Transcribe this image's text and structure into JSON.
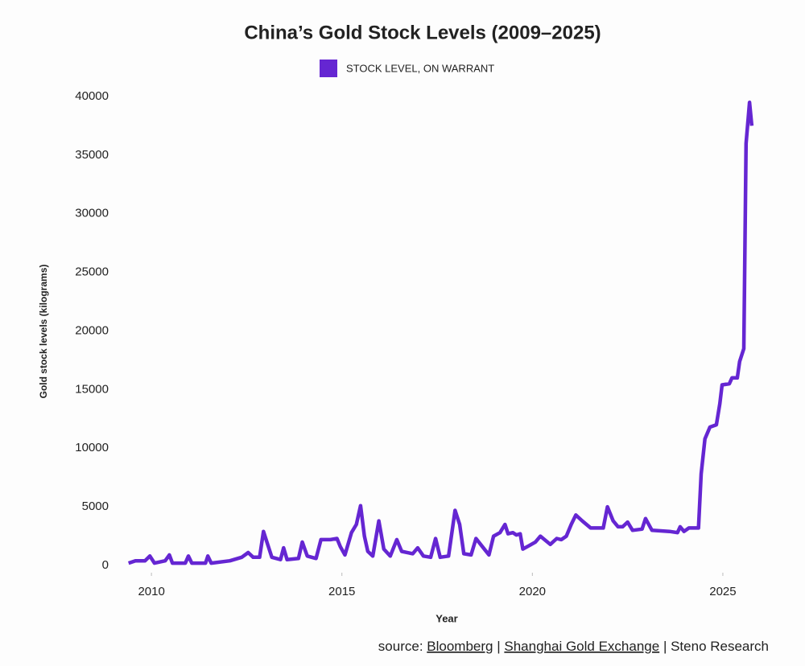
{
  "chart_data": {
    "type": "line",
    "title": "China’s Gold Stock Levels (2009–2025)",
    "xlabel": "Year",
    "ylabel": "Gold stock levels (kilograms)",
    "source": [
      "source:",
      "Bloomberg",
      "|",
      "Shanghai Gold Exchange",
      "|",
      "Steno Research"
    ],
    "legend": "top",
    "xlim": [
      2009.3,
      2026.1
    ],
    "xticks": [
      2010,
      2015,
      2020,
      2025
    ],
    "ylim": [
      0,
      40000
    ],
    "yticks": [
      0,
      5000,
      10000,
      15000,
      20000,
      25000,
      30000,
      35000,
      40000
    ],
    "grid": false,
    "x": [
      2009.4,
      2009.58,
      2009.83,
      2009.96,
      2010.08,
      2010.36,
      2010.47,
      2010.55,
      2010.89,
      2010.97,
      2011.06,
      2011.42,
      2011.48,
      2011.57,
      2012.06,
      2012.37,
      2012.54,
      2012.67,
      2012.84,
      2012.94,
      2013.05,
      2013.16,
      2013.39,
      2013.47,
      2013.56,
      2013.86,
      2013.96,
      2014.09,
      2014.32,
      2014.45,
      2014.7,
      2014.87,
      2014.96,
      2015.08,
      2015.25,
      2015.38,
      2015.49,
      2015.59,
      2015.68,
      2015.81,
      2015.97,
      2016.1,
      2016.27,
      2016.44,
      2016.57,
      2016.86,
      2016.99,
      2017.14,
      2017.33,
      2017.46,
      2017.58,
      2017.8,
      2017.97,
      2018.09,
      2018.2,
      2018.39,
      2018.52,
      2018.69,
      2018.86,
      2018.98,
      2019.15,
      2019.28,
      2019.36,
      2019.49,
      2019.58,
      2019.68,
      2019.75,
      2019.92,
      2020.08,
      2020.21,
      2020.47,
      2020.64,
      2020.76,
      2020.89,
      2021.02,
      2021.14,
      2021.31,
      2021.53,
      2021.86,
      2021.97,
      2022.12,
      2022.25,
      2022.37,
      2022.5,
      2022.63,
      2022.88,
      2022.97,
      2023.14,
      2023.6,
      2023.81,
      2023.88,
      2023.98,
      2024.11,
      2024.36,
      2024.43,
      2024.53,
      2024.66,
      2024.83,
      2024.92,
      2024.98,
      2025.17,
      2025.24,
      2025.38,
      2025.44,
      2025.55,
      2025.61,
      2025.7,
      2025.76
    ],
    "series": [
      {
        "name": "STOCK LEVEL, ON WARRANT",
        "color": "#6526d2",
        "values": [
          200,
          400,
          400,
          800,
          200,
          400,
          900,
          200,
          200,
          800,
          200,
          200,
          800,
          200,
          400,
          700,
          1100,
          700,
          700,
          2900,
          1800,
          700,
          500,
          1500,
          500,
          600,
          2000,
          800,
          600,
          2200,
          2200,
          2300,
          1600,
          900,
          2800,
          3500,
          5100,
          2500,
          1200,
          800,
          3800,
          1400,
          800,
          2200,
          1200,
          1000,
          1500,
          800,
          700,
          2300,
          700,
          800,
          4700,
          3500,
          1000,
          900,
          2300,
          1600,
          900,
          2500,
          2800,
          3500,
          2700,
          2800,
          2600,
          2700,
          1400,
          1700,
          2000,
          2500,
          1800,
          2300,
          2200,
          2500,
          3500,
          4300,
          3800,
          3200,
          3200,
          5000,
          3800,
          3300,
          3300,
          3700,
          3000,
          3100,
          4000,
          3000,
          2900,
          2800,
          3300,
          2900,
          3200,
          3200,
          7800,
          10800,
          11800,
          12000,
          13800,
          15400,
          15500,
          16000,
          16000,
          17400,
          18500,
          36000,
          39500,
          37500
        ]
      }
    ]
  }
}
